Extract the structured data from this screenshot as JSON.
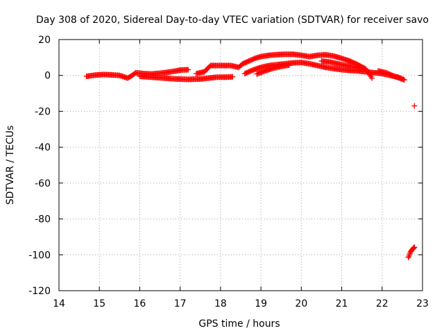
{
  "chart_data": {
    "type": "scatter",
    "title": "Day 308 of 2020, Sidereal Day-to-day VTEC variation (SDTVAR) for receiver savo",
    "xlabel": "GPS time / hours",
    "ylabel": "SDTVAR / TECUs",
    "xlim": [
      14,
      23
    ],
    "ylim": [
      -120,
      20
    ],
    "xticks": [
      14,
      15,
      16,
      17,
      18,
      19,
      20,
      21,
      22,
      23
    ],
    "yticks": [
      20,
      0,
      -20,
      -40,
      -60,
      -80,
      -100,
      -120
    ],
    "grid": true,
    "marker": "+",
    "color": "#ff0000",
    "series": [
      {
        "name": "",
        "points": [
          [
            14.68,
            -0.5
          ],
          [
            14.75,
            -0.3
          ],
          [
            14.9,
            0.2
          ],
          [
            15.1,
            0.5
          ],
          [
            15.3,
            0.3
          ],
          [
            15.5,
            0.0
          ],
          [
            15.7,
            -1.5
          ],
          [
            15.8,
            -0.2
          ],
          [
            15.9,
            1.5
          ],
          [
            16.1,
            1.0
          ],
          [
            16.3,
            0.8
          ],
          [
            16.5,
            1.2
          ],
          [
            16.7,
            1.8
          ],
          [
            16.9,
            2.5
          ],
          [
            17.0,
            3.0
          ],
          [
            17.2,
            3.2
          ],
          [
            16.0,
            -0.5
          ],
          [
            16.3,
            -1.0
          ],
          [
            16.6,
            -1.5
          ],
          [
            16.9,
            -2.0
          ],
          [
            17.2,
            -2.2
          ],
          [
            17.5,
            -2.0
          ],
          [
            17.7,
            -1.5
          ],
          [
            17.9,
            -1.0
          ],
          [
            18.1,
            -1.0
          ],
          [
            18.3,
            -0.8
          ],
          [
            17.4,
            1.0
          ],
          [
            17.6,
            2.0
          ],
          [
            17.75,
            5.5
          ],
          [
            17.9,
            5.5
          ],
          [
            18.1,
            5.5
          ],
          [
            18.25,
            5.5
          ],
          [
            18.45,
            4.5
          ],
          [
            18.55,
            6.5
          ],
          [
            18.7,
            8.0
          ],
          [
            18.85,
            9.5
          ],
          [
            19.0,
            10.5
          ],
          [
            19.2,
            11.2
          ],
          [
            19.4,
            11.6
          ],
          [
            19.6,
            11.8
          ],
          [
            19.8,
            11.8
          ],
          [
            20.0,
            11.2
          ],
          [
            20.2,
            10.5
          ],
          [
            20.4,
            11.2
          ],
          [
            20.6,
            11.5
          ],
          [
            20.8,
            10.8
          ],
          [
            21.0,
            9.5
          ],
          [
            21.2,
            8.0
          ],
          [
            21.4,
            6.0
          ],
          [
            21.6,
            3.5
          ],
          [
            21.75,
            -1.5
          ],
          [
            18.6,
            1.0
          ],
          [
            18.8,
            3.0
          ],
          [
            19.0,
            4.5
          ],
          [
            19.2,
            5.5
          ],
          [
            19.4,
            6.0
          ],
          [
            19.6,
            6.5
          ],
          [
            19.8,
            7.0
          ],
          [
            20.0,
            7.2
          ],
          [
            20.2,
            6.5
          ],
          [
            20.4,
            5.5
          ],
          [
            20.6,
            4.5
          ],
          [
            20.8,
            3.8
          ],
          [
            21.0,
            3.2
          ],
          [
            21.2,
            2.8
          ],
          [
            21.4,
            2.5
          ],
          [
            21.6,
            2.0
          ],
          [
            21.8,
            1.5
          ],
          [
            22.0,
            1.0
          ],
          [
            22.2,
            0.0
          ],
          [
            22.4,
            -1.0
          ],
          [
            22.55,
            -2.5
          ],
          [
            18.9,
            0.8
          ],
          [
            19.1,
            2.5
          ],
          [
            19.3,
            4.0
          ],
          [
            19.5,
            5.0
          ],
          [
            19.7,
            5.8
          ],
          [
            20.5,
            8.0
          ],
          [
            20.7,
            7.5
          ],
          [
            20.9,
            6.5
          ],
          [
            21.1,
            5.5
          ],
          [
            21.3,
            4.8
          ],
          [
            21.5,
            4.0
          ],
          [
            21.9,
            2.5
          ],
          [
            22.1,
            1.5
          ],
          [
            22.3,
            -0.5
          ],
          [
            22.5,
            -2.0
          ],
          [
            22.8,
            -17
          ],
          [
            22.65,
            -101.5
          ],
          [
            22.68,
            -100.0
          ],
          [
            22.7,
            -98.5
          ],
          [
            22.73,
            -97.5
          ],
          [
            22.76,
            -96.8
          ],
          [
            22.78,
            -96.2
          ],
          [
            22.8,
            -95.8
          ]
        ]
      }
    ]
  }
}
